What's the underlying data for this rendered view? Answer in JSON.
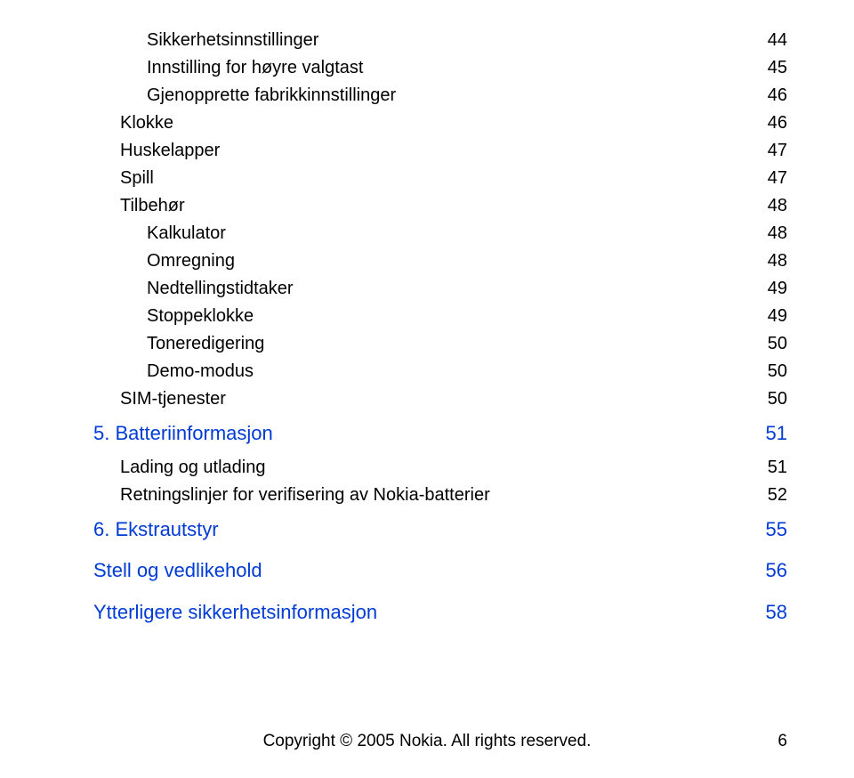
{
  "toc": [
    {
      "level": 3,
      "label": "Sikkerhetsinnstillinger",
      "page": "44",
      "style": "black"
    },
    {
      "level": 3,
      "label": "Innstilling for høyre valgtast",
      "page": "45",
      "style": "black"
    },
    {
      "level": 3,
      "label": "Gjenopprette fabrikkinnstillinger",
      "page": "46",
      "style": "black"
    },
    {
      "level": 2,
      "label": "Klokke",
      "page": "46",
      "style": "black"
    },
    {
      "level": 2,
      "label": "Huskelapper",
      "page": "47",
      "style": "black"
    },
    {
      "level": 2,
      "label": "Spill",
      "page": "47",
      "style": "black"
    },
    {
      "level": 2,
      "label": "Tilbehør",
      "page": "48",
      "style": "black"
    },
    {
      "level": 3,
      "label": "Kalkulator",
      "page": "48",
      "style": "black"
    },
    {
      "level": 3,
      "label": "Omregning",
      "page": "48",
      "style": "black"
    },
    {
      "level": 3,
      "label": "Nedtellingstidtaker",
      "page": "49",
      "style": "black"
    },
    {
      "level": 3,
      "label": "Stoppeklokke",
      "page": "49",
      "style": "black"
    },
    {
      "level": 3,
      "label": "Toneredigering",
      "page": "50",
      "style": "black"
    },
    {
      "level": 3,
      "label": "Demo-modus",
      "page": "50",
      "style": "black"
    },
    {
      "level": 2,
      "label": "SIM-tjenester",
      "page": "50",
      "style": "black"
    },
    {
      "level": 1,
      "label": "5. Batteriinformasjon",
      "page": "51",
      "style": "blue"
    },
    {
      "level": 2,
      "label": "Lading og utlading",
      "page": "51",
      "style": "black"
    },
    {
      "level": 2,
      "label": "Retningslinjer for verifisering av Nokia-batterier",
      "page": "52",
      "style": "black"
    },
    {
      "level": 1,
      "label": "6. Ekstrautstyr",
      "page": "55",
      "style": "blue"
    },
    {
      "level": 1,
      "label": "Stell og vedlikehold",
      "page": "56",
      "style": "blue"
    },
    {
      "level": 1,
      "label": "Ytterligere sikkerhetsinformasjon",
      "page": "58",
      "style": "blue"
    }
  ],
  "footer": {
    "copyright": "Copyright © 2005 Nokia. All rights reserved.",
    "page_number": "6"
  },
  "colors": {
    "link_blue": "#003bd6",
    "text_black": "#000000",
    "background": "#ffffff"
  }
}
